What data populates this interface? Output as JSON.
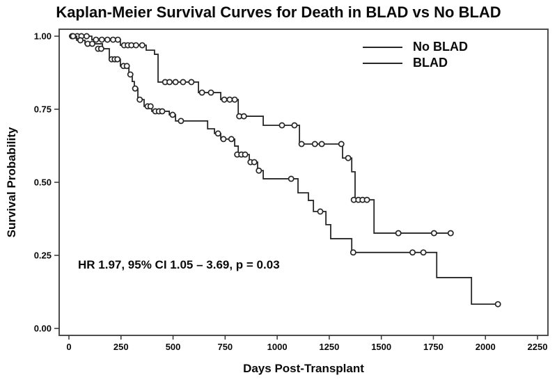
{
  "figure": {
    "title": "Kaplan-Meier Survival Curves for Death in BLAD vs No BLAD",
    "annotation": "HR 1.97, 95% CI 1.05 – 3.69, p = 0.03"
  },
  "chart_data": {
    "type": "line",
    "subtype": "kaplan-meier-step",
    "title": "Kaplan-Meier Survival Curves for Death in BLAD vs No BLAD",
    "xlabel": "Days Post-Transplant",
    "ylabel": "Survival Probability",
    "xlim": [
      0,
      2250
    ],
    "ylim": [
      0,
      1
    ],
    "x_ticks": [
      0,
      250,
      500,
      750,
      1000,
      1250,
      1500,
      1750,
      2000,
      2250
    ],
    "y_ticks": [
      "0.00",
      "0.25",
      "0.50",
      "0.75",
      "1.00"
    ],
    "grid": false,
    "legend_position": "top-right",
    "line_color": "#262626",
    "frame_color": "#4d4d4d",
    "annotation": "HR 1.97, 95% CI 1.05 – 3.69, p = 0.03",
    "series": [
      {
        "name": "No BLAD",
        "steps": [
          [
            0,
            1.0
          ],
          [
            110,
            0.988
          ],
          [
            247,
            0.969
          ],
          [
            371,
            0.952
          ],
          [
            411,
            0.938
          ],
          [
            428,
            0.843
          ],
          [
            622,
            0.807
          ],
          [
            729,
            0.783
          ],
          [
            813,
            0.726
          ],
          [
            933,
            0.695
          ],
          [
            1107,
            0.631
          ],
          [
            1314,
            0.583
          ],
          [
            1358,
            0.536
          ],
          [
            1374,
            0.44
          ],
          [
            1465,
            0.326
          ],
          [
            1833,
            0.326
          ]
        ],
        "censor_marks": [
          [
            15,
            1.0
          ],
          [
            40,
            1.0
          ],
          [
            60,
            1.0
          ],
          [
            85,
            1.0
          ],
          [
            130,
            0.988
          ],
          [
            158,
            0.988
          ],
          [
            185,
            0.988
          ],
          [
            212,
            0.988
          ],
          [
            235,
            0.988
          ],
          [
            265,
            0.969
          ],
          [
            283,
            0.969
          ],
          [
            300,
            0.969
          ],
          [
            322,
            0.969
          ],
          [
            352,
            0.969
          ],
          [
            462,
            0.843
          ],
          [
            483,
            0.843
          ],
          [
            512,
            0.843
          ],
          [
            548,
            0.843
          ],
          [
            588,
            0.843
          ],
          [
            639,
            0.807
          ],
          [
            682,
            0.807
          ],
          [
            746,
            0.783
          ],
          [
            772,
            0.783
          ],
          [
            796,
            0.783
          ],
          [
            818,
            0.726
          ],
          [
            840,
            0.726
          ],
          [
            1023,
            0.695
          ],
          [
            1083,
            0.695
          ],
          [
            1117,
            0.631
          ],
          [
            1181,
            0.631
          ],
          [
            1214,
            0.631
          ],
          [
            1308,
            0.631
          ],
          [
            1341,
            0.583
          ],
          [
            1368,
            0.44
          ],
          [
            1390,
            0.44
          ],
          [
            1410,
            0.44
          ],
          [
            1431,
            0.44
          ],
          [
            1582,
            0.326
          ],
          [
            1753,
            0.326
          ],
          [
            1833,
            0.326
          ]
        ]
      },
      {
        "name": "BLAD",
        "steps": [
          [
            0,
            1.0
          ],
          [
            37,
            0.986
          ],
          [
            77,
            0.974
          ],
          [
            161,
            0.957
          ],
          [
            194,
            0.921
          ],
          [
            247,
            0.898
          ],
          [
            288,
            0.869
          ],
          [
            304,
            0.845
          ],
          [
            314,
            0.821
          ],
          [
            331,
            0.783
          ],
          [
            361,
            0.76
          ],
          [
            398,
            0.743
          ],
          [
            482,
            0.731
          ],
          [
            512,
            0.71
          ],
          [
            666,
            0.683
          ],
          [
            699,
            0.667
          ],
          [
            729,
            0.648
          ],
          [
            796,
            0.624
          ],
          [
            813,
            0.595
          ],
          [
            866,
            0.569
          ],
          [
            906,
            0.54
          ],
          [
            933,
            0.512
          ],
          [
            1100,
            0.464
          ],
          [
            1150,
            0.438
          ],
          [
            1174,
            0.4
          ],
          [
            1234,
            0.355
          ],
          [
            1257,
            0.307
          ],
          [
            1358,
            0.26
          ],
          [
            1766,
            0.174
          ],
          [
            1933,
            0.083
          ],
          [
            2060,
            0.083
          ]
        ],
        "censor_marks": [
          [
            20,
            1.0
          ],
          [
            55,
            0.986
          ],
          [
            90,
            0.974
          ],
          [
            112,
            0.974
          ],
          [
            140,
            0.957
          ],
          [
            155,
            0.957
          ],
          [
            205,
            0.921
          ],
          [
            220,
            0.921
          ],
          [
            233,
            0.921
          ],
          [
            262,
            0.898
          ],
          [
            278,
            0.898
          ],
          [
            295,
            0.869
          ],
          [
            318,
            0.821
          ],
          [
            340,
            0.783
          ],
          [
            378,
            0.76
          ],
          [
            392,
            0.76
          ],
          [
            415,
            0.743
          ],
          [
            432,
            0.743
          ],
          [
            448,
            0.743
          ],
          [
            498,
            0.731
          ],
          [
            538,
            0.71
          ],
          [
            716,
            0.667
          ],
          [
            742,
            0.648
          ],
          [
            780,
            0.648
          ],
          [
            808,
            0.595
          ],
          [
            828,
            0.595
          ],
          [
            846,
            0.595
          ],
          [
            872,
            0.569
          ],
          [
            890,
            0.569
          ],
          [
            912,
            0.54
          ],
          [
            1067,
            0.512
          ],
          [
            1207,
            0.4
          ],
          [
            1365,
            0.26
          ],
          [
            1650,
            0.26
          ],
          [
            1702,
            0.26
          ],
          [
            2060,
            0.083
          ]
        ]
      }
    ]
  }
}
